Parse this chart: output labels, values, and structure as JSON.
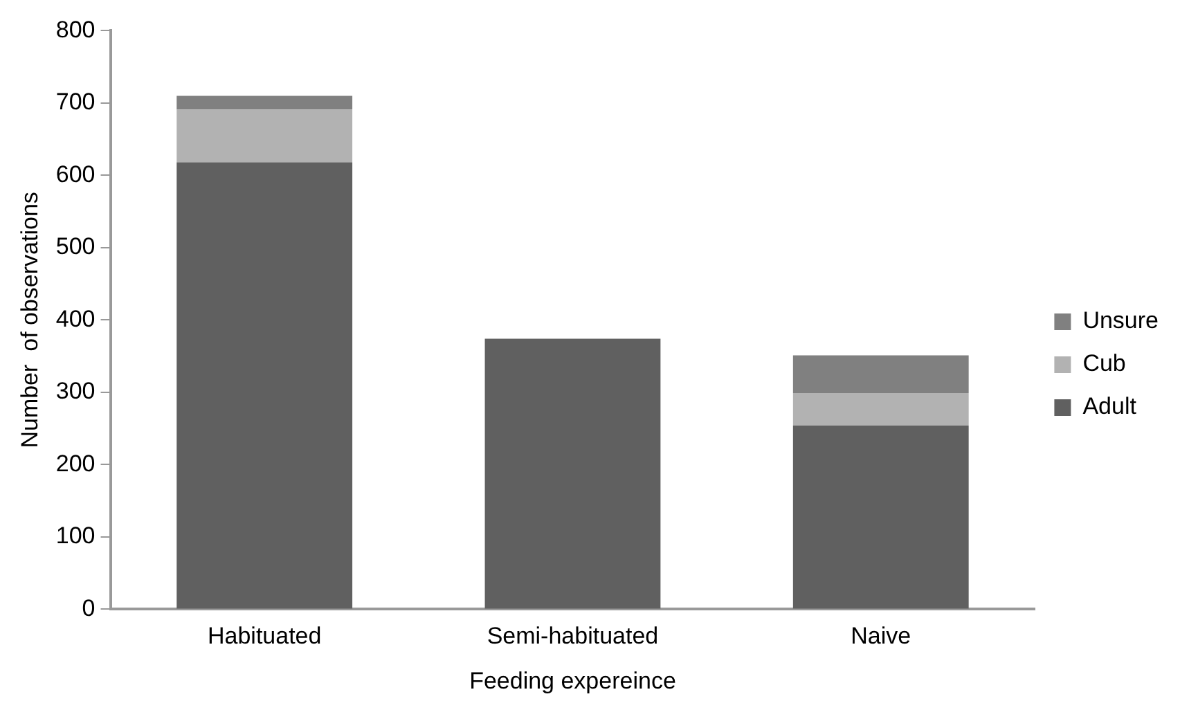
{
  "chart_data": {
    "type": "bar",
    "stacked": true,
    "xlabel": "Feeding expereince",
    "ylabel": "Number  of observations",
    "categories": [
      "Habituated",
      "Semi-habituated",
      "Naive"
    ],
    "series": [
      {
        "name": "Adult",
        "color": "#606060",
        "values": [
          618,
          374,
          254
        ]
      },
      {
        "name": "Cub",
        "color": "#b2b2b2",
        "values": [
          73,
          0,
          45
        ]
      },
      {
        "name": "Unsure",
        "color": "#808080",
        "values": [
          19,
          0,
          52
        ]
      }
    ],
    "ylim": [
      0,
      800
    ],
    "yticks": [
      0,
      100,
      200,
      300,
      400,
      500,
      600,
      700,
      800
    ],
    "grid": false,
    "legend": "right"
  }
}
